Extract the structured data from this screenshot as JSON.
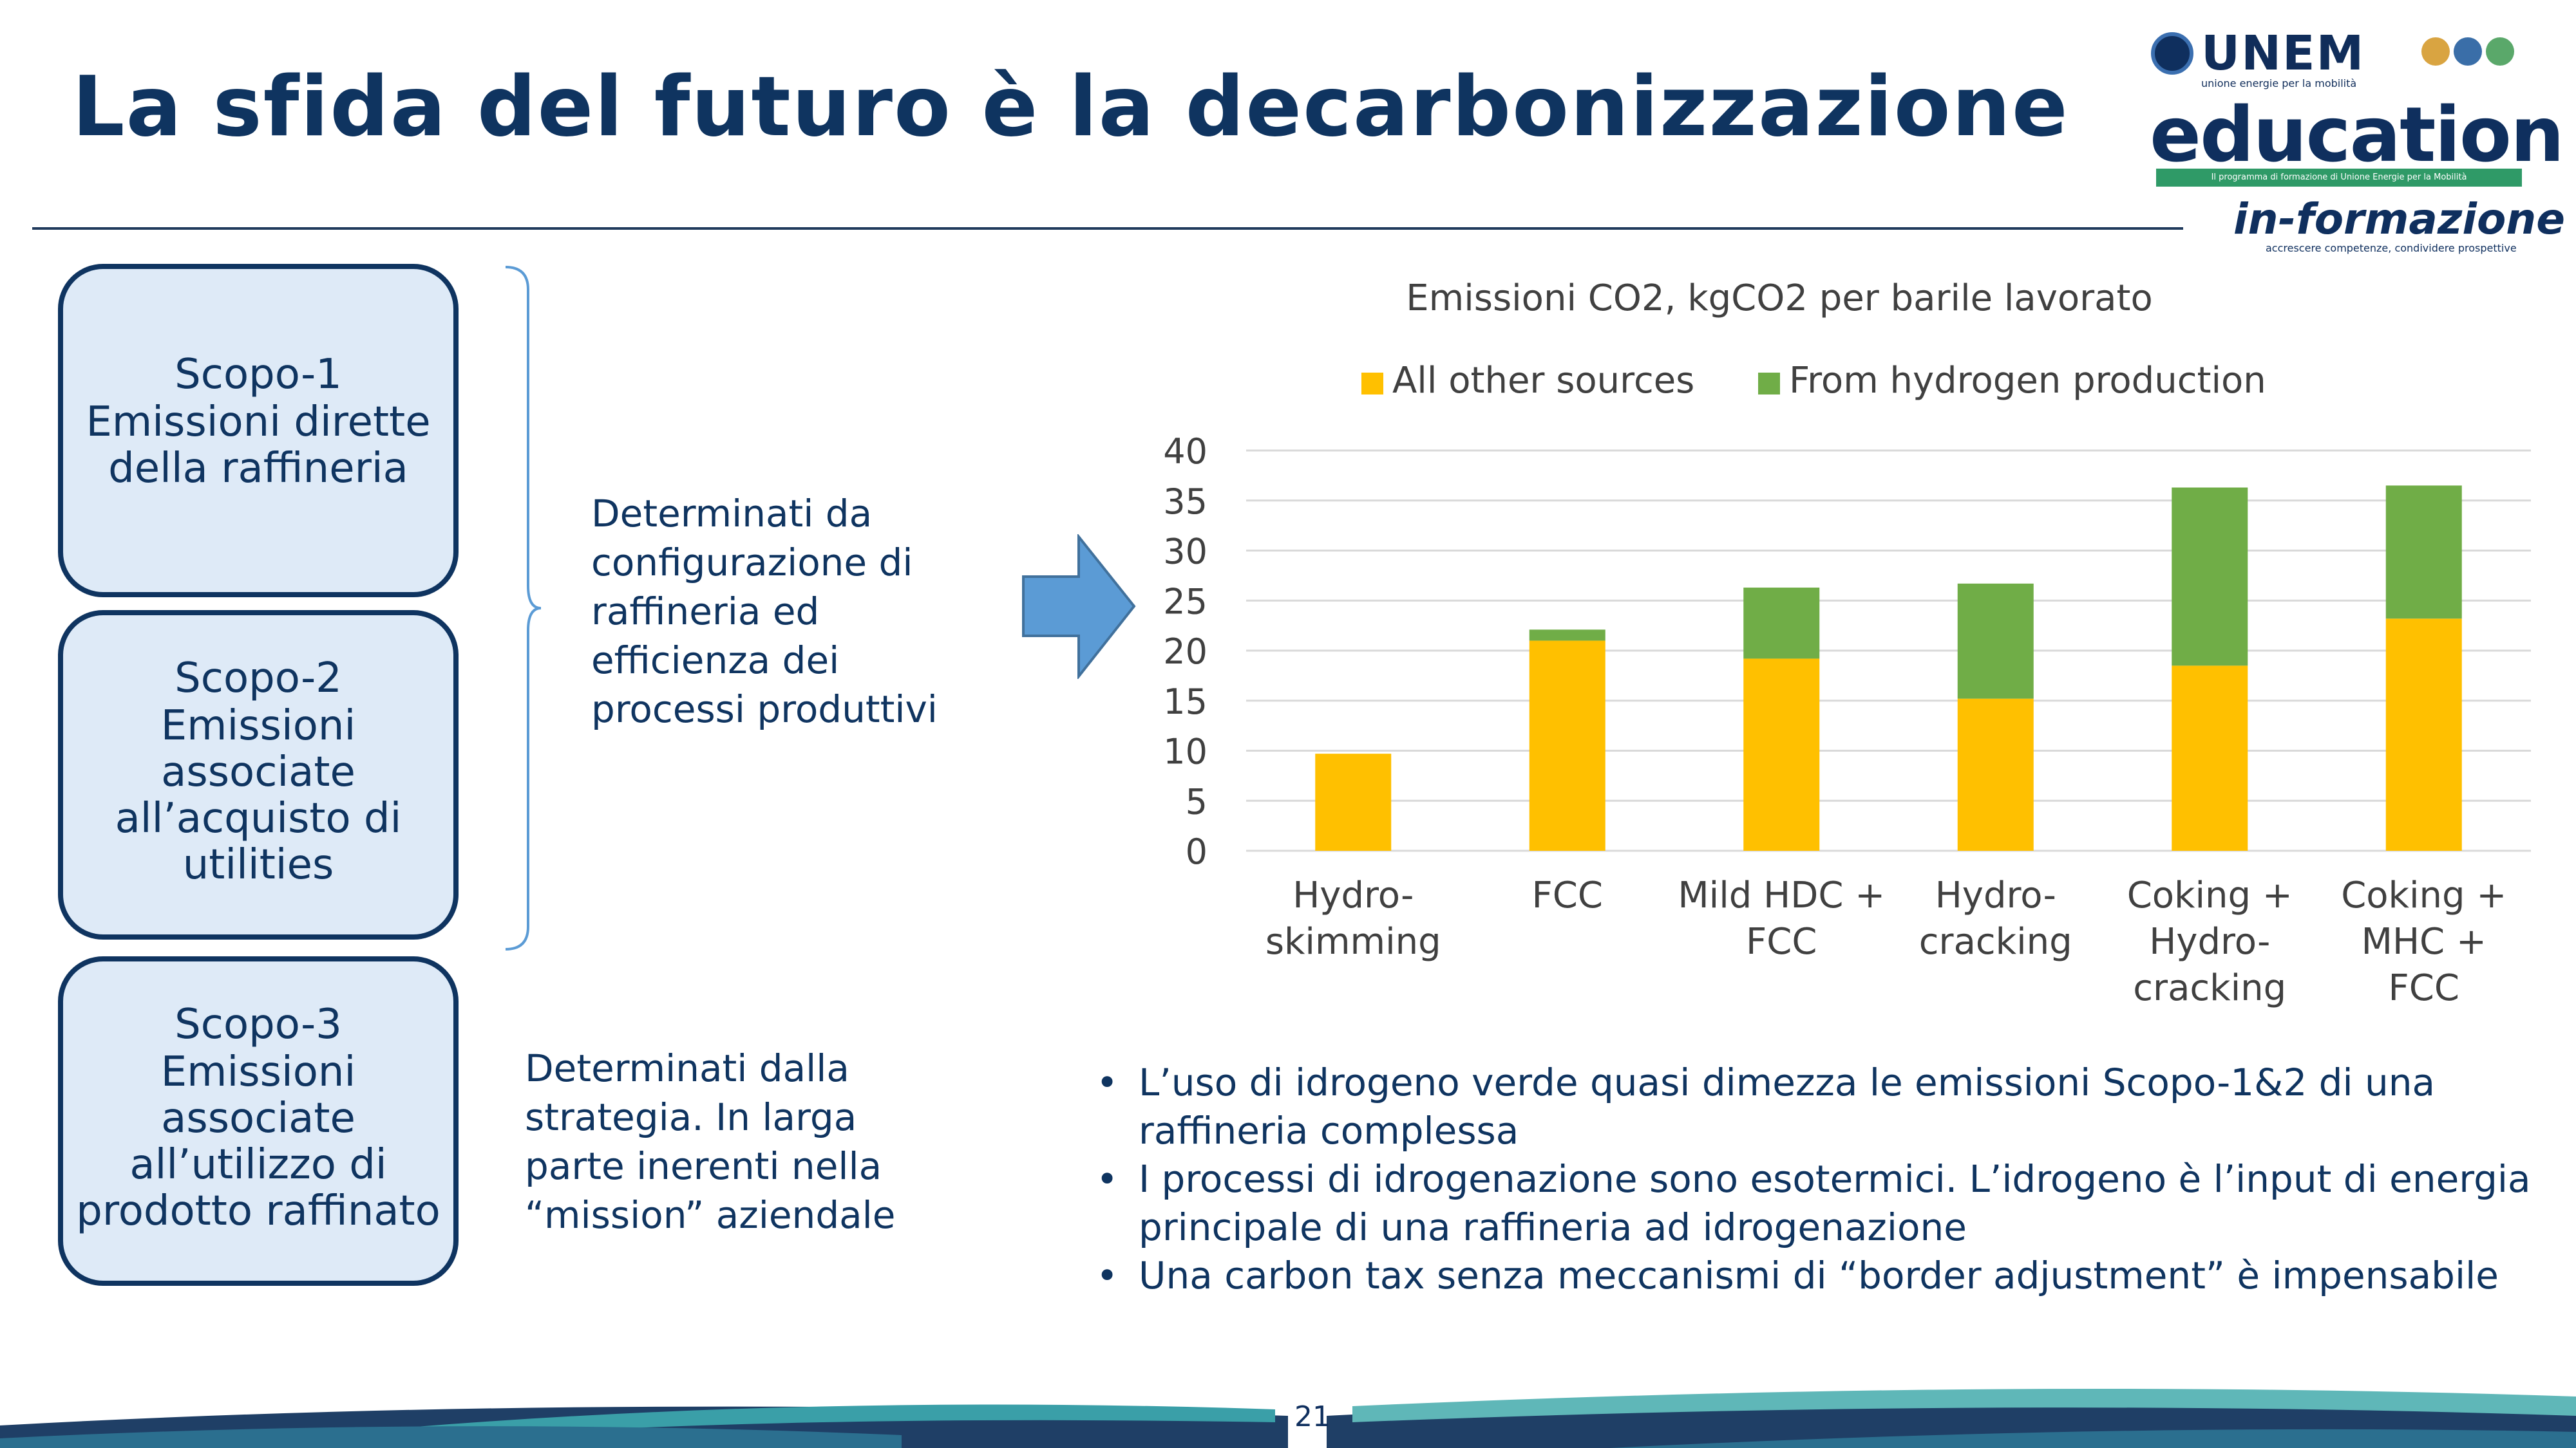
{
  "title": "La sfida del futuro è la decarbonizzazione",
  "logo": {
    "unem": "UNEM",
    "unem_subtitle": "unione energie per la mobilità",
    "education": "education",
    "education_subtitle": "Il programma di formazione di Unione Energie per la Mobilità",
    "informazione": "in-formazione",
    "informazione_subtitle": "accrescere competenze, condividere prospettive"
  },
  "scopes": [
    {
      "title": "Scopo-1",
      "desc": "Emissioni dirette della raffineria"
    },
    {
      "title": "Scopo-2",
      "desc": "Emissioni associate all’acquisto di utilities"
    },
    {
      "title": "Scopo-3",
      "desc": "Emissioni associate all’utilizzo di prodotto raffinato"
    }
  ],
  "notes": {
    "scope12": "Determinati da configurazione di raffineria ed efficienza dei processi produttivi",
    "scope3": "Determinati dalla strategia. In larga parte inerenti nella “mission” aziendale"
  },
  "chart_data": {
    "type": "bar",
    "stacked": true,
    "title": "Emissioni CO2, kgCO2 per barile lavorato",
    "categories": [
      [
        "Hydro-",
        "skimming"
      ],
      [
        "FCC"
      ],
      [
        "Mild HDC +",
        "FCC"
      ],
      [
        "Hydro-",
        "cracking"
      ],
      [
        "Coking +",
        "Hydro-",
        "cracking"
      ],
      [
        "Coking +",
        "MHC +",
        "FCC"
      ]
    ],
    "series": [
      {
        "name": "All other sources",
        "color": "#ffc000",
        "values": [
          9.7,
          21.0,
          19.2,
          15.2,
          18.5,
          23.2
        ]
      },
      {
        "name": "From hydrogen production",
        "color": "#70ad47",
        "values": [
          0.0,
          1.1,
          7.1,
          11.5,
          17.8,
          13.3
        ]
      }
    ],
    "ylim": [
      0,
      40
    ],
    "yticks": [
      0,
      5,
      10,
      15,
      20,
      25,
      30,
      35,
      40
    ],
    "grid": true,
    "legend": "top"
  },
  "bullets": [
    "L’uso di idrogeno verde quasi dimezza le emissioni Scopo-1&2 di una raffineria complessa",
    "I processi di idrogenazione sono esotermici. L’idrogeno è l’input di energia principale di una raffineria ad idrogenazione",
    "Una carbon tax senza meccanismi di “border adjustment” è impensabile"
  ],
  "page_number": "21",
  "colors": {
    "title": "#0f3460",
    "box_fill": "#deeaf7",
    "box_border": "#0f3460",
    "arrow": "#5b9bd5"
  }
}
